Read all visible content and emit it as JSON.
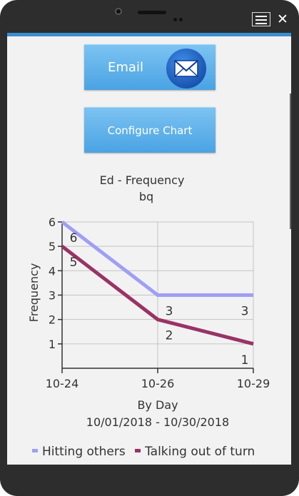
{
  "buttons": {
    "email_label": "Email",
    "configure_label": "Configure Chart"
  },
  "colors": {
    "accent": "#3a8fd0",
    "series_1": "#9f9ff5",
    "series_2": "#993366"
  },
  "icons": [
    "menu-icon",
    "close-icon",
    "envelope-icon"
  ],
  "chart_data": {
    "type": "line",
    "title": "Ed - Frequency",
    "subtitle": "bq",
    "ylabel": "Frequency",
    "xlabel": "By Day",
    "date_range": "10/01/2018 - 10/30/2018",
    "categories": [
      "10-24",
      "10-26",
      "10-29"
    ],
    "ylim": [
      0,
      6
    ],
    "yticks": [
      1,
      2,
      3,
      4,
      5,
      6
    ],
    "grid": true,
    "legend_position": "bottom",
    "series": [
      {
        "name": "Hitting others",
        "values": [
          6,
          3,
          3
        ],
        "color": "#9f9ff5"
      },
      {
        "name": "Talking out of turn",
        "values": [
          5,
          2,
          1
        ],
        "color": "#993366"
      }
    ]
  }
}
